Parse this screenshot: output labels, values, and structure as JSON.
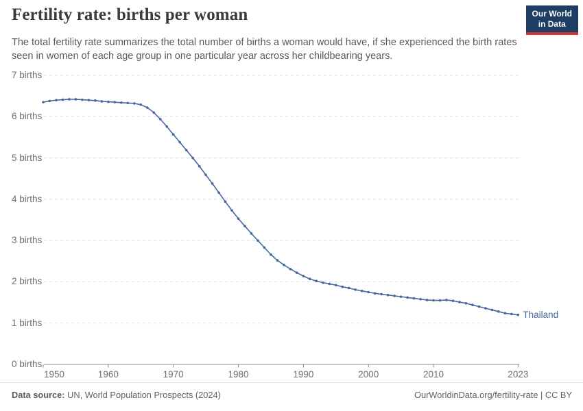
{
  "header": {
    "title": "Fertility rate: births per woman",
    "subtitle": "The total fertility rate summarizes the total number of births a woman would have, if she experienced the birth rates seen in women of each age group in one particular year across her childbearing years.",
    "logo_line1": "Our World",
    "logo_line2": "in Data",
    "logo_bg_color": "#1d3d63",
    "logo_accent_color": "#d13437"
  },
  "chart_data": {
    "type": "line",
    "title": "Fertility rate: births per woman",
    "entity_label": "Thailand",
    "xlabel": "",
    "ylabel": "",
    "ylim": [
      0,
      7
    ],
    "yticks": [
      0,
      1,
      2,
      3,
      4,
      5,
      6,
      7
    ],
    "ytick_suffix": " births",
    "xticks": [
      1950,
      1960,
      1970,
      1980,
      1990,
      2000,
      2010,
      2023
    ],
    "grid": true,
    "legend_position": "end-of-line",
    "x": [
      1950,
      1951,
      1952,
      1953,
      1954,
      1955,
      1956,
      1957,
      1958,
      1959,
      1960,
      1961,
      1962,
      1963,
      1964,
      1965,
      1966,
      1967,
      1968,
      1969,
      1970,
      1971,
      1972,
      1973,
      1974,
      1975,
      1976,
      1977,
      1978,
      1979,
      1980,
      1981,
      1982,
      1983,
      1984,
      1985,
      1986,
      1987,
      1988,
      1989,
      1990,
      1991,
      1992,
      1993,
      1994,
      1995,
      1996,
      1997,
      1998,
      1999,
      2000,
      2001,
      2002,
      2003,
      2004,
      2005,
      2006,
      2007,
      2008,
      2009,
      2010,
      2011,
      2012,
      2013,
      2014,
      2015,
      2016,
      2017,
      2018,
      2019,
      2020,
      2021,
      2022,
      2023
    ],
    "series": [
      {
        "name": "Thailand",
        "color": "#46679c",
        "values": [
          6.35,
          6.38,
          6.4,
          6.41,
          6.42,
          6.42,
          6.41,
          6.4,
          6.39,
          6.37,
          6.36,
          6.35,
          6.34,
          6.33,
          6.32,
          6.29,
          6.22,
          6.1,
          5.94,
          5.76,
          5.57,
          5.38,
          5.19,
          5.0,
          4.8,
          4.59,
          4.38,
          4.16,
          3.94,
          3.73,
          3.53,
          3.35,
          3.17,
          3.0,
          2.83,
          2.66,
          2.52,
          2.41,
          2.31,
          2.22,
          2.14,
          2.07,
          2.02,
          1.98,
          1.95,
          1.92,
          1.88,
          1.85,
          1.81,
          1.78,
          1.75,
          1.72,
          1.7,
          1.68,
          1.66,
          1.64,
          1.62,
          1.6,
          1.58,
          1.56,
          1.55,
          1.55,
          1.56,
          1.54,
          1.51,
          1.48,
          1.44,
          1.4,
          1.36,
          1.32,
          1.28,
          1.24,
          1.22,
          1.2
        ]
      }
    ]
  },
  "footer": {
    "source_label": "Data source:",
    "source_text": "UN, World Population Prospects (2024)",
    "credit": "OurWorldinData.org/fertility-rate | CC BY"
  },
  "colors": {
    "line": "#46679c",
    "grid": "#d9d9d9",
    "axis": "#8c8c8c",
    "tick_text": "#6e6e6e",
    "title_text": "#3a3a3a",
    "subtitle_text": "#595959"
  }
}
